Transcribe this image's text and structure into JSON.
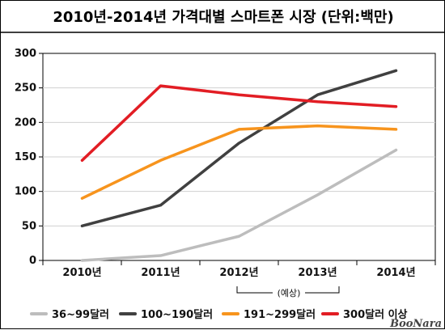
{
  "chart_data": {
    "type": "line",
    "title": "2010년-2014년 가격대별 스마트폰 시장 (단위:백만)",
    "xlabel": "",
    "ylabel": "",
    "categories": [
      "2010년",
      "2011년",
      "2012년",
      "2013년",
      "2014년"
    ],
    "ylim": [
      0,
      300
    ],
    "yticks": [
      0,
      50,
      100,
      150,
      200,
      250,
      300
    ],
    "grid": true,
    "legend_position": "bottom",
    "forecast_note": "(예상)",
    "series": [
      {
        "name": "36~99달러",
        "color": "#bdbdbd",
        "values": [
          0,
          7,
          35,
          95,
          160
        ]
      },
      {
        "name": "100~190달러",
        "color": "#404040",
        "values": [
          50,
          80,
          170,
          240,
          275
        ]
      },
      {
        "name": "191~299달러",
        "color": "#f7941d",
        "values": [
          90,
          145,
          190,
          195,
          190
        ]
      },
      {
        "name": "300달러 이상",
        "color": "#e21d24",
        "values": [
          145,
          253,
          240,
          230,
          223
        ]
      }
    ]
  },
  "watermark": "BooNara"
}
